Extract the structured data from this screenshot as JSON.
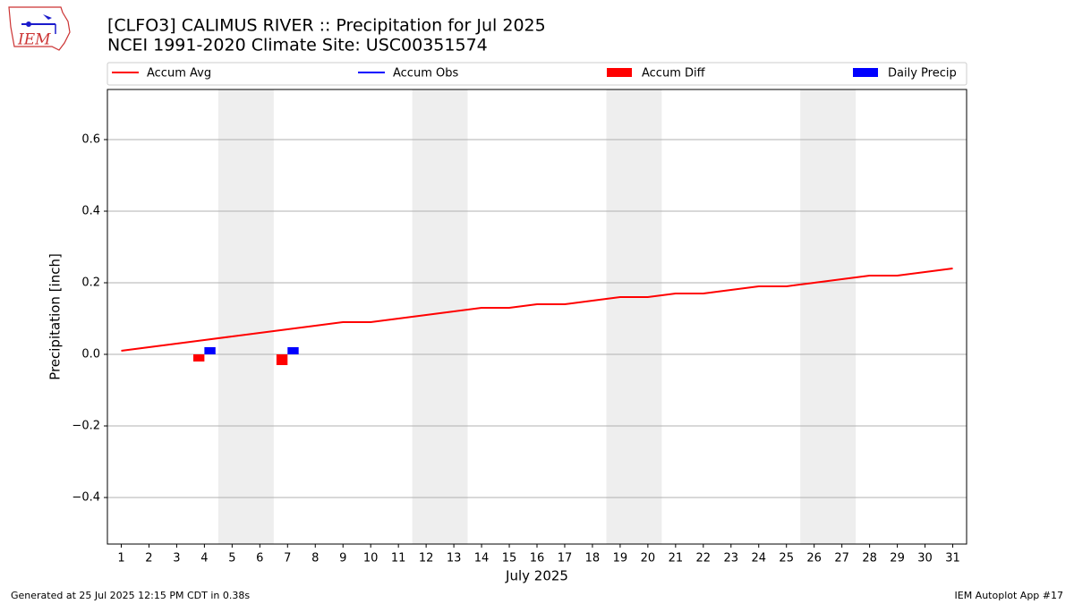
{
  "logo": "IEM",
  "footer_left": "Generated at 25 Jul 2025 12:15 PM CDT in 0.38s",
  "footer_right": "IEM Autoplot App #17",
  "chart_data": {
    "type": "line",
    "title": "[CLFO3] CALIMUS RIVER :: Precipitation for Jul 2025",
    "subtitle": "NCEI 1991-2020 Climate Site: USC00351574",
    "xlabel": "July 2025",
    "ylabel": "Precipitation [inch]",
    "x": [
      1,
      2,
      3,
      4,
      5,
      6,
      7,
      8,
      9,
      10,
      11,
      12,
      13,
      14,
      15,
      16,
      17,
      18,
      19,
      20,
      21,
      22,
      23,
      24,
      25,
      26,
      27,
      28,
      29,
      30,
      31
    ],
    "xlim": [
      0.5,
      31.5
    ],
    "xticks": [
      1,
      2,
      3,
      4,
      5,
      6,
      7,
      8,
      9,
      10,
      11,
      12,
      13,
      14,
      15,
      16,
      17,
      18,
      19,
      20,
      21,
      22,
      23,
      24,
      25,
      26,
      27,
      28,
      29,
      30,
      31
    ],
    "ylim": [
      -0.53,
      0.74
    ],
    "yticks": [
      {
        "value": -0.4,
        "label": "−0.4"
      },
      {
        "value": -0.2,
        "label": "−0.2"
      },
      {
        "value": 0,
        "label": "0.0"
      },
      {
        "value": 0.2,
        "label": "0.2"
      },
      {
        "value": 0.4,
        "label": "0.4"
      },
      {
        "value": 0.6,
        "label": "0.6"
      }
    ],
    "grid": true,
    "bands": [
      [
        4.5,
        6.5
      ],
      [
        11.5,
        13.5
      ],
      [
        18.5,
        20.5
      ],
      [
        25.5,
        27.5
      ]
    ],
    "bands_color": "#eeeeee",
    "series": [
      {
        "name": "Accum Avg",
        "kind": "line",
        "color": "#ff0000",
        "values": [
          0.01,
          0.02,
          0.03,
          0.04,
          0.05,
          0.06,
          0.07,
          0.08,
          0.09,
          0.09,
          0.1,
          0.11,
          0.12,
          0.13,
          0.13,
          0.14,
          0.14,
          0.15,
          0.16,
          0.16,
          0.17,
          0.17,
          0.18,
          0.19,
          0.19,
          0.2,
          0.21,
          0.22,
          0.22,
          0.23,
          0.24
        ]
      },
      {
        "name": "Accum Obs",
        "kind": "line",
        "color": "#0000ff",
        "values": [
          null,
          null,
          null,
          null,
          null,
          null,
          null,
          null,
          null,
          null,
          null,
          null,
          null,
          null,
          null,
          null,
          null,
          null,
          null,
          null,
          null,
          null,
          null,
          null,
          null,
          null,
          null,
          null,
          null,
          null,
          null
        ]
      },
      {
        "name": "Accum Diff",
        "kind": "bar",
        "color": "#ff0000",
        "offset": -0.2,
        "values": [
          null,
          null,
          null,
          -0.02,
          null,
          null,
          -0.03,
          null,
          null,
          null,
          null,
          null,
          null,
          null,
          null,
          null,
          null,
          null,
          null,
          null,
          null,
          null,
          null,
          null,
          null,
          null,
          null,
          null,
          null,
          null,
          null
        ]
      },
      {
        "name": "Daily Precip",
        "kind": "bar",
        "color": "#0000ff",
        "offset": 0.2,
        "values": [
          null,
          null,
          null,
          0.02,
          null,
          null,
          0.02,
          null,
          null,
          null,
          null,
          null,
          null,
          null,
          null,
          null,
          null,
          null,
          null,
          null,
          null,
          null,
          null,
          null,
          null,
          null,
          null,
          null,
          null,
          null,
          null
        ]
      }
    ]
  }
}
